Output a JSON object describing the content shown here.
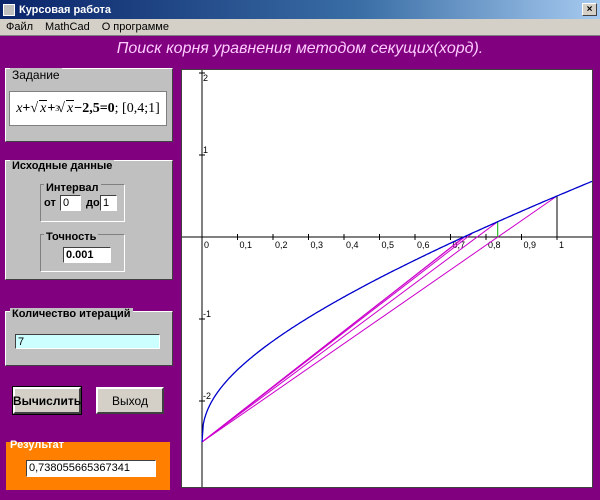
{
  "window": {
    "title": "Курсовая работа",
    "close_glyph": "×",
    "icon": "app-icon"
  },
  "menu": {
    "items": [
      "Файл",
      "MathCad",
      "О программе"
    ]
  },
  "heading": "Поиск корня уравнения  методом секущих(хорд).",
  "task": {
    "title": "Задание",
    "equation": {
      "x": "x",
      "plus1": " + ",
      "sqrt_arg": "x",
      "plus2": " + ",
      "cbrt_index": "3",
      "cbrt_arg": "x",
      "minus": " − ",
      "const": "2,5",
      "eq": " = ",
      "zero": "0",
      "interval": " ; [0,4;1]"
    }
  },
  "inputs": {
    "title": "Исходные данные",
    "interval": {
      "title": "Интервал",
      "from_label": "от",
      "from_value": "0",
      "to_label": "до",
      "to_value": "1"
    },
    "accuracy": {
      "title": "Точность",
      "value": "0.001"
    }
  },
  "iterations": {
    "title": "Количество итераций",
    "value": "7"
  },
  "buttons": {
    "calculate": "Вычислить",
    "exit": "Выход"
  },
  "result": {
    "title": "Результат",
    "value": "0,738055665367341"
  },
  "chart_data": {
    "type": "line",
    "title": "",
    "xlabel": "",
    "ylabel": "",
    "xlim": [
      0,
      1.1
    ],
    "ylim": [
      -2,
      2
    ],
    "x_ticks": [
      "0",
      "0,1",
      "0,2",
      "0,3",
      "0,4",
      "0,5",
      "0,6",
      "0,7",
      "0,8",
      "0,9",
      "1"
    ],
    "y_ticks": [
      "2",
      "1",
      "0",
      "-1",
      "-2"
    ],
    "function": "x + sqrt(x) + cbrt(x) - 2.5",
    "series_color": "#0000cc",
    "secant_color": "#cc00cc",
    "root": 0.738055665367341,
    "secants": [
      {
        "from": [
          0,
          -2.5
        ],
        "to": [
          1,
          0.5
        ]
      },
      {
        "from": [
          0,
          -2.5
        ],
        "to": [
          0.833,
          0.187
        ]
      },
      {
        "from": [
          0,
          -2.5
        ],
        "to": [
          0.76,
          0.04
        ]
      },
      {
        "from": [
          0,
          -2.5
        ],
        "to": [
          0.742,
          0.008
        ]
      },
      {
        "from": [
          0,
          -2.5
        ],
        "to": [
          0.7385,
          0.001
        ]
      }
    ],
    "vertical_marks": [
      {
        "x": 1,
        "color": "#000000"
      },
      {
        "x": 0.833,
        "color": "#00aa00"
      }
    ]
  }
}
